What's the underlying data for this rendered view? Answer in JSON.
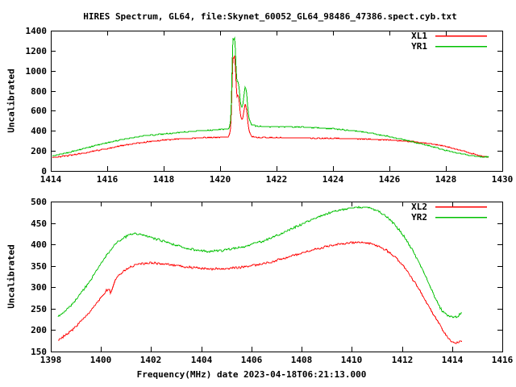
{
  "title": "HIRES Spectrum, GL64, file:Skynet_60052_GL64_98486_47386.spect.cyb.txt",
  "xlabel": "Frequency(MHz) date 2023-04-18T06:21:13.000",
  "colors": {
    "red": "#ff0000",
    "green": "#00c000",
    "axis": "#000000",
    "background": "#ffffff"
  },
  "chart_data": [
    {
      "id": "top",
      "type": "line",
      "ylabel": "Uncalibrated",
      "xlim": [
        1414,
        1430
      ],
      "ylim": [
        0,
        1400
      ],
      "x_ticks": [
        1414,
        1416,
        1418,
        1420,
        1422,
        1424,
        1426,
        1428,
        1430
      ],
      "y_ticks": [
        0,
        200,
        400,
        600,
        800,
        1000,
        1200,
        1400
      ],
      "grid": false,
      "legend_position": "top-right",
      "noise": 4,
      "series": [
        {
          "name": "XL1",
          "color": "#ff0000",
          "points": [
            [
              1414.05,
              133
            ],
            [
              1414.5,
              148
            ],
            [
              1415,
              170
            ],
            [
              1415.5,
              196
            ],
            [
              1416,
              224
            ],
            [
              1416.5,
              252
            ],
            [
              1417,
              276
            ],
            [
              1417.5,
              294
            ],
            [
              1418,
              308
            ],
            [
              1418.5,
              318
            ],
            [
              1419,
              326
            ],
            [
              1419.5,
              332
            ],
            [
              1420,
              336
            ],
            [
              1420.2,
              339
            ],
            [
              1420.3,
              344
            ],
            [
              1420.36,
              400
            ],
            [
              1420.4,
              640
            ],
            [
              1420.44,
              1140
            ],
            [
              1420.47,
              1100
            ],
            [
              1420.5,
              1180
            ],
            [
              1420.53,
              1060
            ],
            [
              1420.57,
              820
            ],
            [
              1420.6,
              720
            ],
            [
              1420.63,
              770
            ],
            [
              1420.67,
              700
            ],
            [
              1420.72,
              540
            ],
            [
              1420.78,
              500
            ],
            [
              1420.83,
              590
            ],
            [
              1420.88,
              665
            ],
            [
              1420.93,
              620
            ],
            [
              1420.97,
              500
            ],
            [
              1421.02,
              400
            ],
            [
              1421.1,
              345
            ],
            [
              1421.25,
              336
            ],
            [
              1421.5,
              333
            ],
            [
              1422,
              331
            ],
            [
              1423,
              328
            ],
            [
              1424,
              324
            ],
            [
              1424.5,
              321
            ],
            [
              1425,
              318
            ],
            [
              1425.5,
              314
            ],
            [
              1426,
              308
            ],
            [
              1426.5,
              300
            ],
            [
              1427,
              288
            ],
            [
              1427.5,
              270
            ],
            [
              1428,
              244
            ],
            [
              1428.5,
              208
            ],
            [
              1429,
              168
            ],
            [
              1429.3,
              146
            ],
            [
              1429.5,
              140
            ]
          ]
        },
        {
          "name": "YR1",
          "color": "#00c000",
          "points": [
            [
              1414.05,
              148
            ],
            [
              1414.5,
              178
            ],
            [
              1415,
              212
            ],
            [
              1415.5,
              248
            ],
            [
              1416,
              282
            ],
            [
              1416.5,
              312
            ],
            [
              1417,
              338
            ],
            [
              1417.5,
              356
            ],
            [
              1418,
              370
            ],
            [
              1418.5,
              382
            ],
            [
              1419,
              394
            ],
            [
              1419.5,
              404
            ],
            [
              1420,
              413
            ],
            [
              1420.2,
              417
            ],
            [
              1420.3,
              425
            ],
            [
              1420.36,
              470
            ],
            [
              1420.4,
              760
            ],
            [
              1420.44,
              1330
            ],
            [
              1420.47,
              1290
            ],
            [
              1420.5,
              1360
            ],
            [
              1420.53,
              1240
            ],
            [
              1420.57,
              960
            ],
            [
              1420.6,
              870
            ],
            [
              1420.63,
              900
            ],
            [
              1420.67,
              820
            ],
            [
              1420.72,
              660
            ],
            [
              1420.78,
              620
            ],
            [
              1420.83,
              730
            ],
            [
              1420.88,
              840
            ],
            [
              1420.93,
              800
            ],
            [
              1420.97,
              640
            ],
            [
              1421.02,
              520
            ],
            [
              1421.1,
              465
            ],
            [
              1421.25,
              448
            ],
            [
              1421.5,
              442
            ],
            [
              1422,
              441
            ],
            [
              1422.5,
              440
            ],
            [
              1423,
              436
            ],
            [
              1423.5,
              430
            ],
            [
              1424,
              420
            ],
            [
              1424.5,
              407
            ],
            [
              1425,
              390
            ],
            [
              1425.5,
              368
            ],
            [
              1426,
              342
            ],
            [
              1426.5,
              312
            ],
            [
              1427,
              278
            ],
            [
              1427.5,
              242
            ],
            [
              1428,
              205
            ],
            [
              1428.5,
              172
            ],
            [
              1429,
              148
            ],
            [
              1429.3,
              140
            ],
            [
              1429.5,
              139
            ]
          ]
        }
      ]
    },
    {
      "id": "bottom",
      "type": "line",
      "ylabel": "Uncalibrated",
      "xlim": [
        1398,
        1416
      ],
      "ylim": [
        150,
        500
      ],
      "x_ticks": [
        1398,
        1400,
        1402,
        1404,
        1406,
        1408,
        1410,
        1412,
        1414,
        1416
      ],
      "y_ticks": [
        150,
        200,
        250,
        300,
        350,
        400,
        450,
        500
      ],
      "grid": false,
      "legend_position": "top-right",
      "noise": 2.2,
      "series": [
        {
          "name": "XL2",
          "color": "#ff0000",
          "points": [
            [
              1398.3,
              178
            ],
            [
              1398.6,
              188
            ],
            [
              1399,
              208
            ],
            [
              1399.4,
              232
            ],
            [
              1399.8,
              260
            ],
            [
              1400.2,
              291
            ],
            [
              1400.35,
              296
            ],
            [
              1400.4,
              283
            ],
            [
              1400.5,
              305
            ],
            [
              1400.6,
              320
            ],
            [
              1400.9,
              337
            ],
            [
              1401.2,
              348
            ],
            [
              1401.5,
              354
            ],
            [
              1401.9,
              357
            ],
            [
              1402.3,
              356
            ],
            [
              1402.7,
              353
            ],
            [
              1403.1,
              350
            ],
            [
              1403.5,
              347
            ],
            [
              1403.9,
              345
            ],
            [
              1404.3,
              343
            ],
            [
              1404.7,
              343
            ],
            [
              1405.1,
              344
            ],
            [
              1405.5,
              346
            ],
            [
              1405.9,
              349
            ],
            [
              1406.3,
              353
            ],
            [
              1406.7,
              358
            ],
            [
              1407.1,
              364
            ],
            [
              1407.5,
              371
            ],
            [
              1408,
              379
            ],
            [
              1408.5,
              388
            ],
            [
              1409,
              395
            ],
            [
              1409.5,
              401
            ],
            [
              1410,
              404
            ],
            [
              1410.4,
              405
            ],
            [
              1410.8,
              401
            ],
            [
              1411.1,
              395
            ],
            [
              1411.4,
              386
            ],
            [
              1411.7,
              372
            ],
            [
              1412,
              354
            ],
            [
              1412.3,
              331
            ],
            [
              1412.6,
              304
            ],
            [
              1412.9,
              274
            ],
            [
              1413.2,
              243
            ],
            [
              1413.5,
              214
            ],
            [
              1413.75,
              190
            ],
            [
              1413.95,
              176
            ],
            [
              1414.1,
              170
            ],
            [
              1414.25,
              170
            ],
            [
              1414.4,
              174
            ]
          ]
        },
        {
          "name": "YR2",
          "color": "#00c000",
          "points": [
            [
              1398.3,
              232
            ],
            [
              1398.6,
              244
            ],
            [
              1399,
              270
            ],
            [
              1399.4,
              300
            ],
            [
              1399.8,
              335
            ],
            [
              1400.2,
              372
            ],
            [
              1400.6,
              402
            ],
            [
              1400.9,
              415
            ],
            [
              1401.2,
              424
            ],
            [
              1401.5,
              425
            ],
            [
              1401.9,
              419
            ],
            [
              1402.3,
              411
            ],
            [
              1402.7,
              403
            ],
            [
              1403.1,
              396
            ],
            [
              1403.5,
              390
            ],
            [
              1403.9,
              386
            ],
            [
              1404.3,
              384
            ],
            [
              1404.7,
              385
            ],
            [
              1405.1,
              388
            ],
            [
              1405.5,
              392
            ],
            [
              1405.9,
              398
            ],
            [
              1406.3,
              405
            ],
            [
              1406.7,
              413
            ],
            [
              1407.1,
              423
            ],
            [
              1407.5,
              433
            ],
            [
              1407.9,
              444
            ],
            [
              1408.3,
              455
            ],
            [
              1408.7,
              465
            ],
            [
              1409.1,
              473
            ],
            [
              1409.5,
              480
            ],
            [
              1409.9,
              484
            ],
            [
              1410.3,
              487
            ],
            [
              1410.7,
              485
            ],
            [
              1411,
              479
            ],
            [
              1411.3,
              469
            ],
            [
              1411.6,
              454
            ],
            [
              1411.9,
              434
            ],
            [
              1412.2,
              409
            ],
            [
              1412.5,
              379
            ],
            [
              1412.8,
              345
            ],
            [
              1413.1,
              308
            ],
            [
              1413.35,
              272
            ],
            [
              1413.6,
              246
            ],
            [
              1413.85,
              233
            ],
            [
              1414.05,
              229
            ],
            [
              1414.25,
              233
            ],
            [
              1414.4,
              241
            ]
          ]
        }
      ]
    }
  ]
}
